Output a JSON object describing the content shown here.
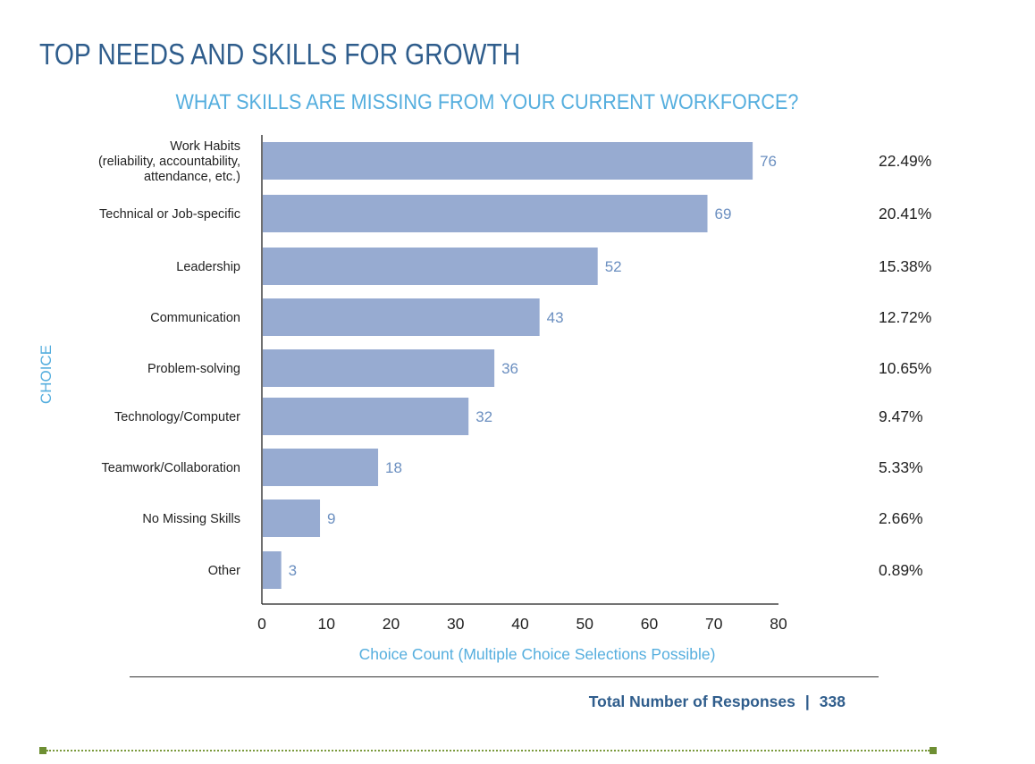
{
  "page_title": "TOP NEEDS AND SKILLS FOR GROWTH",
  "colors": {
    "bar": "#97abd1",
    "title": "#2f5d8c",
    "accent": "#55aede",
    "value_label": "#6b8fc0",
    "footer_rule": "#7b9a3c"
  },
  "total": {
    "label": "Total Number of Responses",
    "separator": "|",
    "value": "338"
  },
  "chart_data": {
    "type": "bar",
    "orientation": "horizontal",
    "title": "WHAT SKILLS ARE MISSING FROM YOUR CURRENT WORKFORCE?",
    "xlabel": "Choice Count (Multiple Choice Selections Possible)",
    "ylabel": "CHOICE",
    "xlim": [
      0,
      80
    ],
    "xticks": [
      0,
      10,
      20,
      30,
      40,
      50,
      60,
      70,
      80
    ],
    "grid": false,
    "categories": [
      [
        "Work Habits",
        "(reliability, accountability,",
        "attendance, etc.)"
      ],
      [
        "Technical or Job-specific"
      ],
      [
        "Leadership"
      ],
      [
        "Communication"
      ],
      [
        "Problem-solving"
      ],
      [
        "Technology/Computer"
      ],
      [
        "Teamwork/Collaboration"
      ],
      [
        "No Missing Skills"
      ],
      [
        "Other"
      ]
    ],
    "values": [
      76,
      69,
      52,
      43,
      36,
      32,
      18,
      9,
      3
    ],
    "percentages": [
      "22.49%",
      "20.41%",
      "15.38%",
      "12.72%",
      "10.65%",
      "9.47%",
      "5.33%",
      "2.66%",
      "0.89%"
    ]
  }
}
